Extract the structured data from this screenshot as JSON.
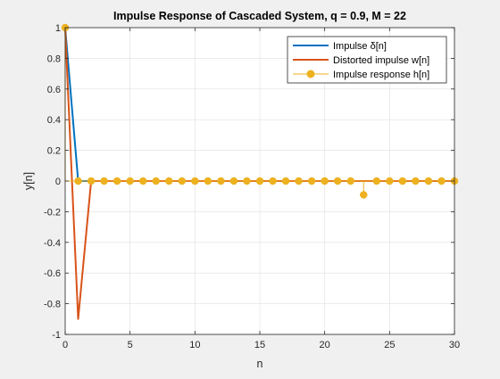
{
  "chart_data": {
    "type": "line",
    "title": "Impulse Response of Cascaded System, q = 0.9, M = 22",
    "xlabel": "n",
    "ylabel": "y[n]",
    "xlim": [
      0,
      30
    ],
    "ylim": [
      -1,
      1
    ],
    "grid": true,
    "legend_position": "top-right",
    "x_ticks": [
      0,
      5,
      10,
      15,
      20,
      25,
      30
    ],
    "y_ticks": [
      -1,
      -0.8,
      -0.6,
      -0.4,
      -0.2,
      0,
      0.2,
      0.4,
      0.6,
      0.8,
      1
    ],
    "x_tick_labels": [
      "0",
      "5",
      "10",
      "15",
      "20",
      "25",
      "30"
    ],
    "y_tick_labels": [
      "-1",
      "-0.8",
      "-0.6",
      "-0.4",
      "-0.2",
      "0",
      "0.2",
      "0.4",
      "0.6",
      "0.8",
      "1"
    ],
    "series": [
      {
        "name": "Impulse δ[n]",
        "legend_label": "Impulse δ[n]",
        "style": "line",
        "color": "#0072bd",
        "x": [
          0,
          1,
          2,
          3,
          4,
          5,
          6,
          7,
          8,
          9,
          10,
          11,
          12,
          13,
          14,
          15,
          16,
          17,
          18,
          19,
          20,
          21,
          22,
          23,
          24,
          25,
          26,
          27,
          28,
          29,
          30
        ],
        "y": [
          1,
          0,
          0,
          0,
          0,
          0,
          0,
          0,
          0,
          0,
          0,
          0,
          0,
          0,
          0,
          0,
          0,
          0,
          0,
          0,
          0,
          0,
          0,
          0,
          0,
          0,
          0,
          0,
          0,
          0,
          0
        ]
      },
      {
        "name": "Distorted impulse w[n]",
        "legend_label": "Distorted impulse w[n]",
        "style": "line",
        "color": "#d95319",
        "x": [
          0,
          1,
          2,
          3,
          4,
          5,
          6,
          7,
          8,
          9,
          10,
          11,
          12,
          13,
          14,
          15,
          16,
          17,
          18,
          19,
          20,
          21,
          22,
          23,
          24,
          25,
          26,
          27,
          28,
          29,
          30
        ],
        "y": [
          1,
          -0.9,
          0,
          0,
          0,
          0,
          0,
          0,
          0,
          0,
          0,
          0,
          0,
          0,
          0,
          0,
          0,
          0,
          0,
          0,
          0,
          0,
          0,
          0,
          0,
          0,
          0,
          0,
          0,
          0,
          0
        ]
      },
      {
        "name": "Impulse response h[n]",
        "legend_label": "Impulse response h[n]",
        "style": "stem",
        "color": "#edb120",
        "x": [
          0,
          1,
          2,
          3,
          4,
          5,
          6,
          7,
          8,
          9,
          10,
          11,
          12,
          13,
          14,
          15,
          16,
          17,
          18,
          19,
          20,
          21,
          22,
          23,
          24,
          25,
          26,
          27,
          28,
          29,
          30
        ],
        "y": [
          1,
          0,
          0,
          0,
          0,
          0,
          0,
          0,
          0,
          0,
          0,
          0,
          0,
          0,
          0,
          0,
          0,
          0,
          0,
          0,
          0,
          0,
          0,
          -0.09,
          0,
          0,
          0,
          0,
          0,
          0,
          0
        ]
      }
    ]
  }
}
